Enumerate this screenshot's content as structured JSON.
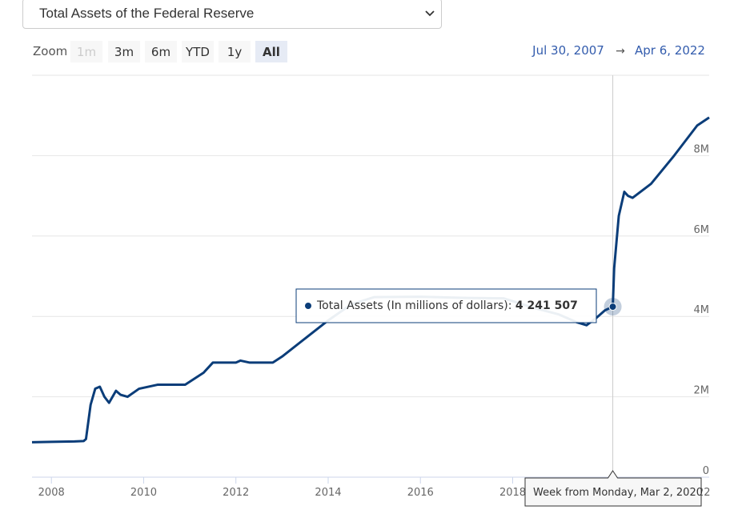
{
  "ui": {
    "dropdown": "Total Assets of the Federal Reserve",
    "zoom_label": "Zoom",
    "buttons": [
      "1m",
      "3m",
      "6m",
      "YTD",
      "1y",
      "All"
    ],
    "range_from": "Jul 30, 2007",
    "range_to": "Apr 6, 2022"
  },
  "chart_data": {
    "type": "line",
    "x": [
      2007.58,
      2008.0,
      2008.5,
      2008.7,
      2008.75,
      2008.85,
      2008.95,
      2009.05,
      2009.15,
      2009.25,
      2009.4,
      2009.5,
      2009.65,
      2009.9,
      2010.3,
      2010.6,
      2010.9,
      2011.3,
      2011.5,
      2012.0,
      2012.1,
      2012.3,
      2012.8,
      2013.0,
      2013.5,
      2014.0,
      2014.5,
      2015.0,
      2016.0,
      2017.0,
      2017.8,
      2018.5,
      2019.0,
      2019.4,
      2019.6,
      2019.8,
      2020.0,
      2020.17,
      2020.2,
      2020.3,
      2020.42,
      2020.5,
      2020.6,
      2021.0,
      2021.5,
      2022.0,
      2022.26
    ],
    "series": [
      {
        "name": "Total Assets (In millions of dollars)",
        "color": "#0b3d79",
        "values": [
          870000,
          880000,
          890000,
          900000,
          950000,
          1800000,
          2200000,
          2250000,
          2000000,
          1850000,
          2150000,
          2050000,
          2000000,
          2200000,
          2300000,
          2300000,
          2300000,
          2600000,
          2850000,
          2850000,
          2900000,
          2850000,
          2850000,
          3000000,
          3450000,
          3900000,
          4300000,
          4480000,
          4490000,
          4460000,
          4450000,
          4200000,
          4050000,
          3850000,
          3780000,
          3950000,
          4150000,
          4241507,
          5200000,
          6500000,
          7100000,
          7000000,
          6950000,
          7300000,
          8000000,
          8750000,
          8950000
        ]
      }
    ],
    "xlim": [
      2007.58,
      2022.26
    ],
    "xticks": [
      2008,
      2010,
      2012,
      2014,
      2016,
      2018,
      2020,
      2022
    ],
    "ylim": [
      0,
      10000000
    ],
    "yticks": [
      0,
      {
        "value": 2000000,
        "label": "2M"
      },
      {
        "value": 4000000,
        "label": "4M"
      },
      {
        "value": 6000000,
        "label": "6M"
      },
      {
        "value": 8000000,
        "label": "8M"
      }
    ],
    "grid": true,
    "tooltip": {
      "point": 37,
      "header": "Week from Monday, Mar 2, 2020",
      "value_label": "4 241 507"
    }
  }
}
